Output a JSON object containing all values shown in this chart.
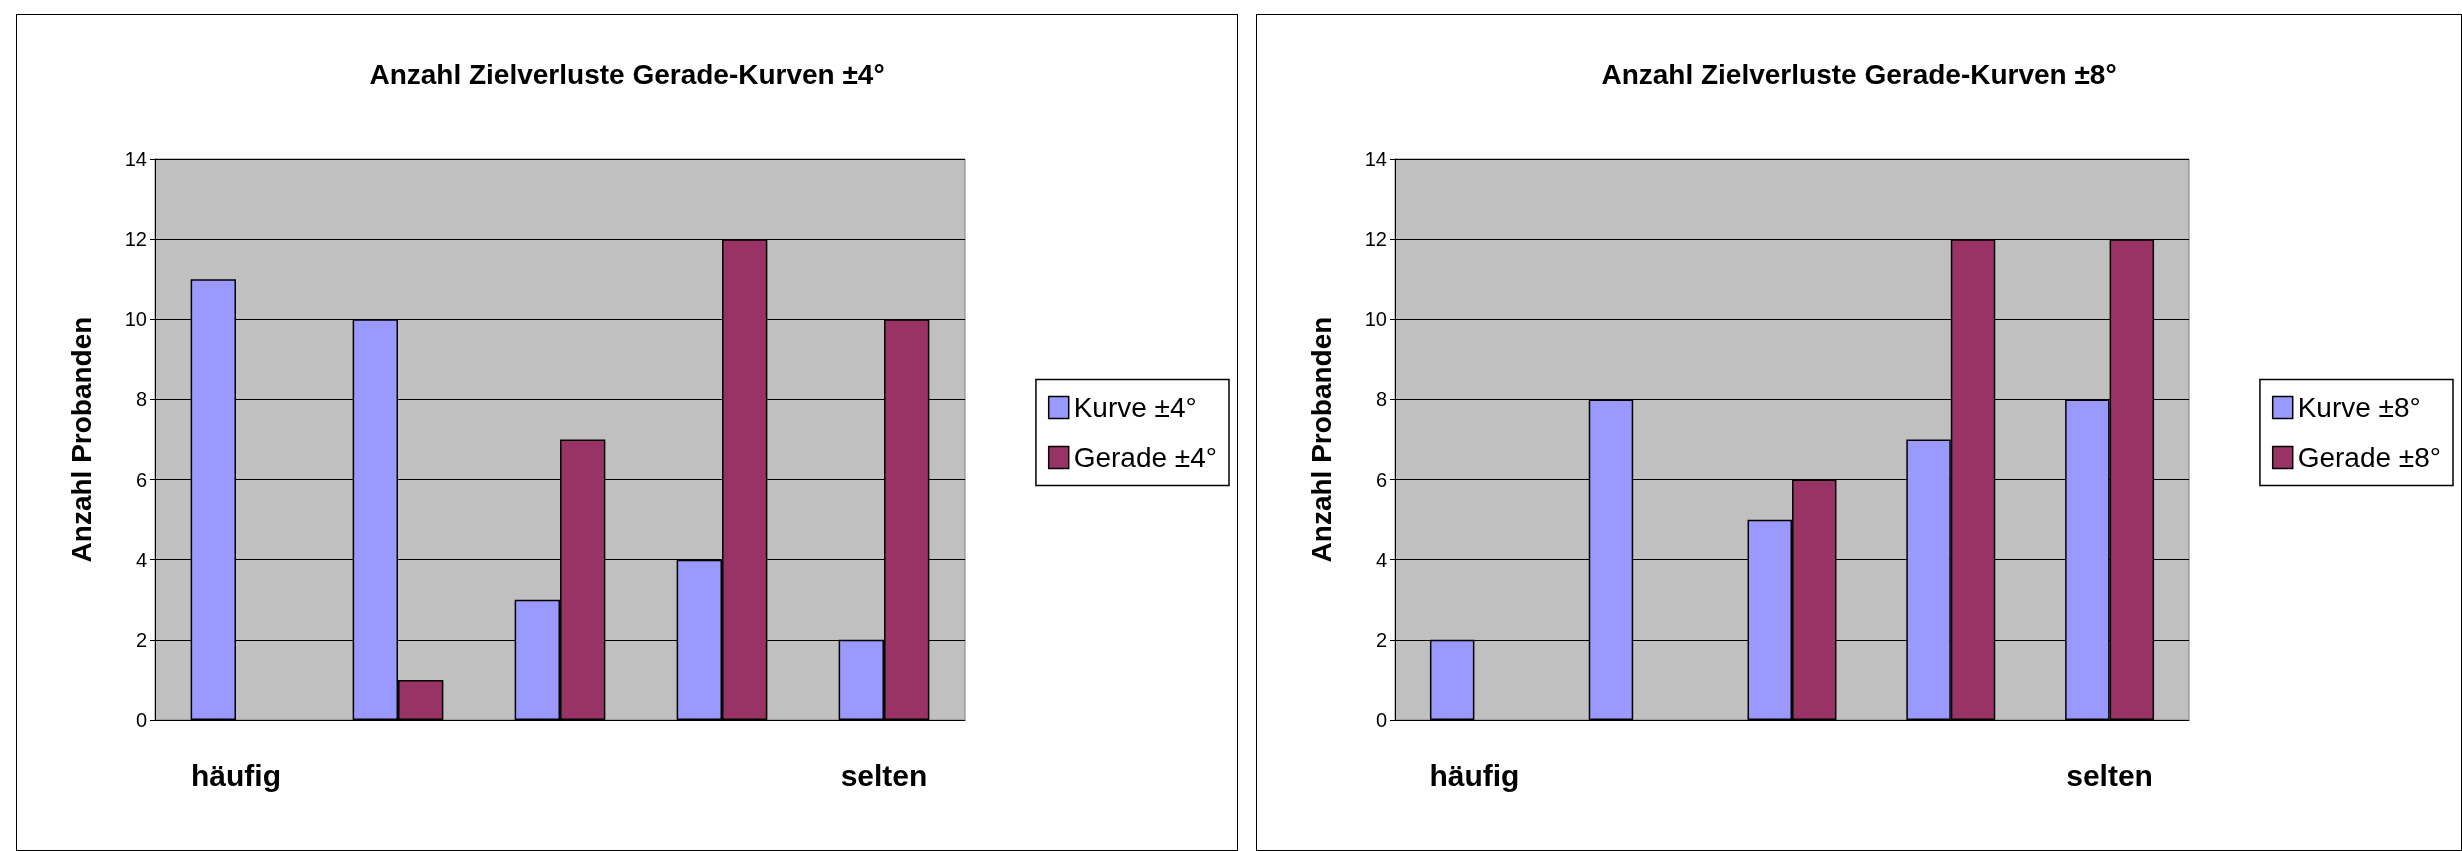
{
  "chart_data": [
    {
      "type": "bar",
      "title": "Anzahl Zielverluste Gerade-Kurven ±4°",
      "ylabel": "Anzahl Probanden",
      "categories": [
        "häufig",
        null,
        null,
        null,
        "selten"
      ],
      "series": [
        {
          "name": "Kurve ±4°",
          "color": "#9999ff",
          "values": [
            11,
            10,
            3,
            4,
            2
          ]
        },
        {
          "name": "Gerade ±4°",
          "color": "#993366",
          "values": [
            null,
            1,
            7,
            12,
            10
          ]
        }
      ],
      "ylim": [
        0,
        14
      ],
      "yticks": [
        0,
        2,
        4,
        6,
        8,
        10,
        12,
        14
      ],
      "grid": "y",
      "legend": "right"
    },
    {
      "type": "bar",
      "title": "Anzahl Zielverluste Gerade-Kurven ±8°",
      "ylabel": "Anzahl Probanden",
      "categories": [
        "häufig",
        null,
        null,
        null,
        "selten"
      ],
      "series": [
        {
          "name": "Kurve ±8°",
          "color": "#9999ff",
          "values": [
            2,
            8,
            5,
            7,
            8
          ]
        },
        {
          "name": "Gerade ±8°",
          "color": "#993366",
          "values": [
            null,
            null,
            6,
            12,
            12
          ]
        }
      ],
      "ylim": [
        0,
        14
      ],
      "yticks": [
        0,
        2,
        4,
        6,
        8,
        10,
        12,
        14
      ],
      "grid": "y",
      "legend": "right"
    }
  ]
}
